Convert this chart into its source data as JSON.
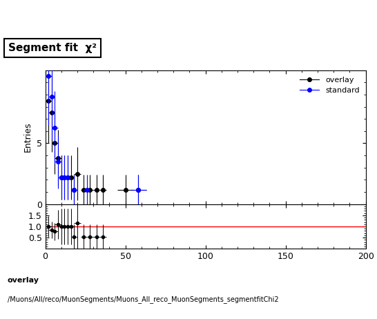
{
  "title": "Segment fit  χ²",
  "ylabel_main": "Entries",
  "xlim": [
    0,
    200
  ],
  "ylim_main": [
    0,
    11
  ],
  "ylim_ratio": [
    0,
    2.0
  ],
  "ratio_yticks": [
    0.5,
    1.0,
    1.5
  ],
  "xticks": [
    0,
    50,
    100,
    150,
    200
  ],
  "footer_line1": "overlay",
  "footer_line2": "/Muons/All/reco/MuonSegments/Muons_All_reco_MuonSegments_segmentfitChi2",
  "overlay_color": "#000000",
  "standard_color": "#0000ff",
  "ratio_line_color": "#ff0000",
  "overlay_x": [
    2,
    4,
    6,
    8,
    10,
    12,
    14,
    16,
    18,
    20,
    24,
    28,
    32,
    36,
    50,
    58
  ],
  "overlay_y": [
    8.5,
    7.5,
    5.0,
    3.8,
    2.2,
    2.2,
    2.2,
    2.2,
    1.2,
    2.5,
    1.2,
    1.2,
    1.2,
    1.2,
    1.2,
    1.2
  ],
  "overlay_yerr": [
    3.5,
    3.2,
    2.5,
    2.3,
    1.8,
    1.8,
    1.8,
    1.8,
    1.2,
    2.2,
    1.2,
    1.2,
    1.2,
    1.2,
    1.2,
    1.2
  ],
  "overlay_xerr": [
    2,
    2,
    2,
    2,
    2,
    2,
    2,
    2,
    2,
    2,
    2,
    2,
    2,
    2,
    5,
    5
  ],
  "standard_x": [
    2,
    4,
    6,
    8,
    10,
    12,
    14,
    18,
    26,
    58
  ],
  "standard_y": [
    10.5,
    8.8,
    6.3,
    3.5,
    2.2,
    2.2,
    2.2,
    1.2,
    1.2,
    1.2
  ],
  "standard_yerr": [
    4.0,
    3.5,
    3.0,
    2.2,
    1.8,
    1.8,
    1.8,
    1.2,
    1.2,
    1.2
  ],
  "standard_xerr": [
    2,
    2,
    2,
    2,
    2,
    2,
    2,
    2,
    2,
    5
  ],
  "ratio_overlay_x": [
    2,
    4,
    6,
    8,
    10,
    12,
    14,
    16,
    18,
    20,
    24,
    28,
    32,
    36
  ],
  "ratio_overlay_y": [
    1.0,
    0.85,
    0.77,
    1.08,
    1.0,
    1.0,
    1.0,
    1.0,
    0.55,
    1.15,
    0.55,
    0.55,
    0.55,
    0.55
  ],
  "ratio_overlay_yerr": [
    0.45,
    0.38,
    0.4,
    0.65,
    0.8,
    0.8,
    0.8,
    0.8,
    0.55,
    1.15,
    0.55,
    0.55,
    0.55,
    0.55
  ],
  "ratio_overlay_xerr": [
    2,
    2,
    2,
    2,
    2,
    2,
    2,
    2,
    2,
    2,
    2,
    2,
    2,
    2
  ],
  "background_color": "#ffffff"
}
